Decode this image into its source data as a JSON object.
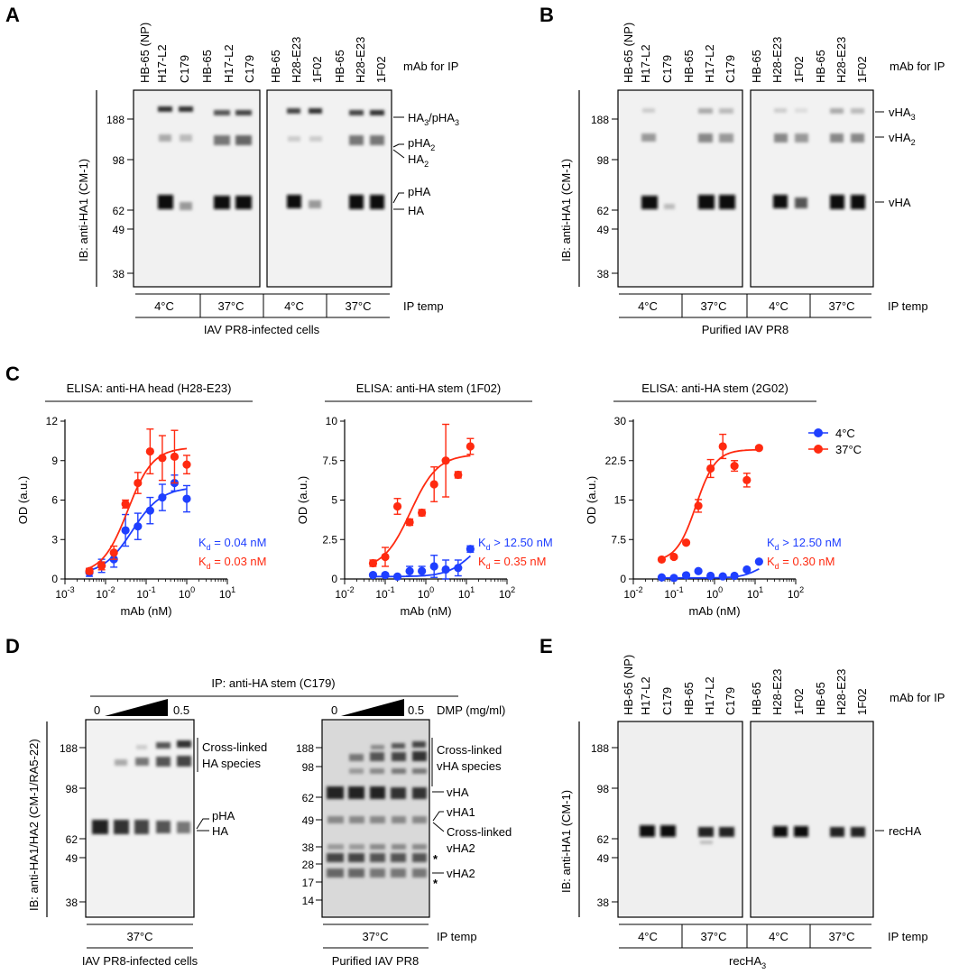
{
  "panels": {
    "A": {
      "letter": "A",
      "ip_label": "mAb for IP",
      "lanes_left": [
        "HB-65 (NP)",
        "H17-L2",
        "C179",
        "HB-65",
        "H17-L2",
        "C179"
      ],
      "lanes_right": [
        "HB-65",
        "H28-E23",
        "1F02",
        "HB-65",
        "H28-E23",
        "1F02"
      ],
      "ylabel": "IB: anti-HA1 (CM-1)",
      "mw": [
        "188",
        "98",
        "62",
        "49",
        "38"
      ],
      "bands": {
        "ha3_main": "HA",
        "ha3_sub": "3",
        "ha3_sep": "/pHA",
        "ha3_sub2": "3",
        "pha2": "pHA",
        "pha2_sub": "2",
        "ha2": "HA",
        "ha2_sub": "2",
        "pha": "pHA",
        "ha": "HA"
      },
      "temps": [
        "4°C",
        "37°C",
        "4°C",
        "37°C"
      ],
      "temp_label": "IP temp",
      "sample": "IAV PR8-infected cells"
    },
    "B": {
      "letter": "B",
      "ip_label": "mAb for IP",
      "lanes_left": [
        "HB-65 (NP)",
        "H17-L2",
        "C179",
        "HB-65",
        "H17-L2",
        "C179"
      ],
      "lanes_right": [
        "HB-65",
        "H28-E23",
        "1F02",
        "HB-65",
        "H28-E23",
        "1F02"
      ],
      "ylabel": "IB: anti-HA1 (CM-1)",
      "mw": [
        "188",
        "98",
        "62",
        "49",
        "38"
      ],
      "bands": {
        "vha3": "vHA",
        "vha3_sub": "3",
        "vha2": "vHA",
        "vha2_sub": "2",
        "vha": "vHA"
      },
      "temps": [
        "4°C",
        "37°C",
        "4°C",
        "37°C"
      ],
      "temp_label": "IP temp",
      "sample": "Purified IAV PR8"
    },
    "C": {
      "letter": "C",
      "kd_prefix": "K",
      "kd_sub": "d",
      "legend": [
        "4°C",
        "37°C"
      ],
      "colors": {
        "c4": "#1f3fff",
        "c37": "#ff2a10"
      }
    },
    "D": {
      "letter": "D",
      "ip_title": "IP: anti-HA stem (C179)",
      "dmp_start": "0",
      "dmp_end": "0.5",
      "dmp_label": "DMP (mg/ml)",
      "ylabel": "IB: anti-HA1/HA2 (CM-1/RA5-22)",
      "mw_left": [
        "188",
        "98",
        "62",
        "49",
        "38"
      ],
      "mw_right": [
        "188",
        "98",
        "62",
        "49",
        "38",
        "28",
        "17",
        "14"
      ],
      "left_labels": [
        "Cross-linked",
        "HA species",
        "pHA",
        "HA"
      ],
      "right_labels": [
        "Cross-linked",
        "vHA species",
        "vHA",
        "vHA1",
        "Cross-linked",
        "vHA2",
        "*",
        "*",
        "vHA2"
      ],
      "temp_left": "37°C",
      "temp_right": "37°C",
      "temp_label": "IP temp",
      "sample_left": "IAV PR8-infected cells",
      "sample_right": "Purified IAV PR8"
    },
    "E": {
      "letter": "E",
      "ip_label": "mAb for IP",
      "lanes_left": [
        "HB-65 (NP)",
        "H17-L2",
        "C179",
        "HB-65",
        "H17-L2",
        "C179"
      ],
      "lanes_right": [
        "HB-65",
        "H28-E23",
        "1F02",
        "HB-65",
        "H28-E23",
        "1F02"
      ],
      "ylabel": "IB: anti-HA1 (CM-1)",
      "mw": [
        "188",
        "98",
        "62",
        "49",
        "38"
      ],
      "band": "recHA",
      "temps": [
        "4°C",
        "37°C",
        "4°C",
        "37°C"
      ],
      "temp_label": "IP temp",
      "sample_main": "recHA",
      "sample_sub": "3"
    }
  },
  "chart_data": [
    {
      "type": "scatter",
      "title": "ELISA: anti-HA head (H28-E23)",
      "xlabel": "mAb (nM)",
      "ylabel": "OD (a.u.)",
      "xscale": "log",
      "xlim": [
        0.001,
        10
      ],
      "ylim": [
        0,
        12
      ],
      "yticks": [
        "0",
        "3",
        "6",
        "9",
        "12"
      ],
      "series": [
        {
          "name": "4°C",
          "x": [
            0.004,
            0.008,
            0.016,
            0.031,
            0.0625,
            0.125,
            0.25,
            0.5,
            1
          ],
          "y": [
            0.5,
            1.0,
            1.5,
            3.7,
            4.0,
            5.2,
            6.2,
            7.3,
            6.1
          ],
          "err": [
            0.3,
            0.5,
            0.6,
            1.2,
            1.0,
            1.0,
            1.0,
            0.6,
            1.0
          ]
        },
        {
          "name": "37°C",
          "x": [
            0.004,
            0.008,
            0.016,
            0.031,
            0.0625,
            0.125,
            0.25,
            0.5,
            1
          ],
          "y": [
            0.6,
            1.0,
            2.0,
            5.7,
            7.3,
            9.7,
            9.2,
            9.3,
            8.7
          ],
          "err": [
            0.2,
            0.3,
            0.5,
            0.3,
            0.8,
            1.7,
            1.7,
            2.0,
            0.7
          ]
        }
      ],
      "annotations": [
        "0.04 nM",
        "0.03 nM"
      ]
    },
    {
      "type": "scatter",
      "title": "ELISA: anti-HA stem (1F02)",
      "xlabel": "mAb (nM)",
      "ylabel": "OD (a.u.)",
      "xscale": "log",
      "xlim": [
        0.01,
        100
      ],
      "ylim": [
        0,
        10
      ],
      "yticks": [
        "0",
        "2.5",
        "5",
        "7.5",
        "10"
      ],
      "series": [
        {
          "name": "4°C",
          "x": [
            0.05,
            0.1,
            0.2,
            0.4,
            0.8,
            1.6,
            3.1,
            6.25,
            12.5
          ],
          "y": [
            0.25,
            0.25,
            0.15,
            0.5,
            0.5,
            0.8,
            0.6,
            0.7,
            1.9
          ],
          "err": [
            0.1,
            0.1,
            0.1,
            0.3,
            0.3,
            0.7,
            0.6,
            0.5,
            0.2
          ]
        },
        {
          "name": "37°C",
          "x": [
            0.05,
            0.1,
            0.2,
            0.4,
            0.8,
            1.6,
            3.1,
            6.25,
            12.5
          ],
          "y": [
            1.0,
            1.4,
            4.6,
            3.6,
            4.2,
            6.0,
            7.5,
            6.6,
            8.4
          ],
          "err": [
            0.2,
            0.6,
            0.5,
            0.2,
            0.2,
            1.1,
            2.3,
            0.2,
            0.5
          ]
        }
      ],
      "annotations": [
        "> 12.50 nM",
        "0.35 nM"
      ]
    },
    {
      "type": "scatter",
      "title": "ELISA: anti-HA stem (2G02)",
      "xlabel": "mAb (nM)",
      "ylabel": "OD (a.u.)",
      "xscale": "log",
      "xlim": [
        0.01,
        100
      ],
      "ylim": [
        0,
        30
      ],
      "yticks": [
        "0",
        "7.5",
        "15",
        "22.5",
        "30"
      ],
      "series": [
        {
          "name": "4°C",
          "x": [
            0.05,
            0.1,
            0.2,
            0.4,
            0.8,
            1.6,
            3.1,
            6.25,
            12.5
          ],
          "y": [
            0.3,
            0.2,
            0.7,
            1.5,
            0.6,
            0.5,
            0.6,
            1.8,
            3.3
          ],
          "err": [
            0,
            0,
            0,
            0,
            0,
            0,
            0,
            0,
            0
          ]
        },
        {
          "name": "37°C",
          "x": [
            0.05,
            0.1,
            0.2,
            0.4,
            0.8,
            1.6,
            3.1,
            6.25,
            12.5
          ],
          "y": [
            3.7,
            4.2,
            6.9,
            13.9,
            21.0,
            25.2,
            21.5,
            18.8,
            24.9
          ],
          "err": [
            0.3,
            0.3,
            0.3,
            1.2,
            1.7,
            2.3,
            1.0,
            1.3,
            0.3
          ]
        }
      ],
      "annotations": [
        "> 12.50 nM",
        "0.30 nM"
      ]
    }
  ]
}
